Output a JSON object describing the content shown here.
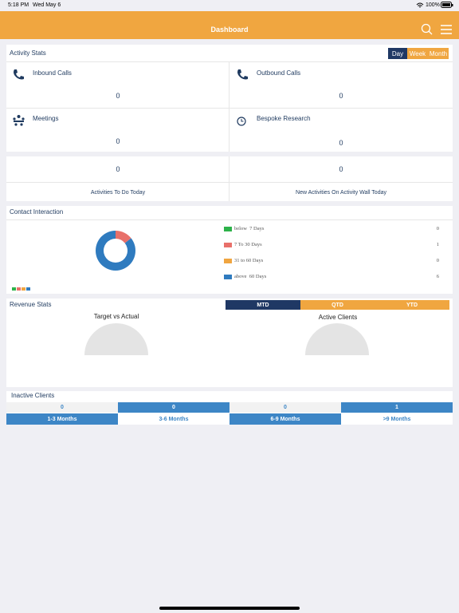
{
  "status_bar": {
    "time": "5:18 PM",
    "date": "Wed May 6",
    "battery": "100%"
  },
  "header": {
    "title": "Dashboard"
  },
  "activity_stats": {
    "title": "Activity Stats",
    "tabs": [
      "Day",
      "Week",
      "Month"
    ],
    "tiles": [
      {
        "label": "Inbound Calls",
        "value": 0
      },
      {
        "label": "Outbound Calls",
        "value": 0
      },
      {
        "label": "Meetings",
        "value": 0
      },
      {
        "label": "Bespoke Research",
        "value": 0
      }
    ],
    "todo": [
      {
        "value": 0,
        "label": "Activities To Do Today"
      },
      {
        "value": 0,
        "label": "New Activities On Activity Wall Today"
      }
    ]
  },
  "contact_interaction": {
    "title": "Contact Interaction",
    "segments": [
      {
        "label": "below  7 Days",
        "value": 0,
        "color": "#2db24a"
      },
      {
        "label": "7 To 30 Days",
        "value": 1,
        "color": "#e8706a"
      },
      {
        "label": "31 to 60 Days",
        "value": 0,
        "color": "#f0a540"
      },
      {
        "label": "above  60 Days",
        "value": 6,
        "color": "#2f7bbf"
      }
    ]
  },
  "revenue_stats": {
    "title": "Revenue Stats",
    "tabs": [
      "MTD",
      "QTD",
      "YTD"
    ],
    "gauges": [
      "Target vs Actual",
      "Active Clients"
    ]
  },
  "inactive_clients": {
    "title": "Inactive Clients",
    "buckets": [
      {
        "value": 0,
        "label": "1-3 Months"
      },
      {
        "value": 0,
        "label": "3-6 Months"
      },
      {
        "value": 0,
        "label": "6-9 Months"
      },
      {
        "value": 1,
        "label": ">9 Months"
      }
    ]
  }
}
